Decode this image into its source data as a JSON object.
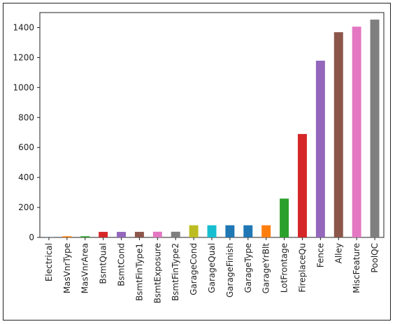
{
  "chart_data": {
    "type": "bar",
    "title": "",
    "xlabel": "",
    "ylabel": "",
    "ylim": [
      0,
      1500
    ],
    "yticks": [
      0,
      200,
      400,
      600,
      800,
      1000,
      1200,
      1400
    ],
    "grid": false,
    "legend": "none",
    "categories": [
      "Electrical",
      "MasVnrType",
      "MasVnrArea",
      "BsmtQual",
      "BsmtCond",
      "BsmtFinType1",
      "BsmtExposure",
      "BsmtFinType2",
      "GarageCond",
      "GarageQual",
      "GarageFinish",
      "GarageType",
      "GarageYrBlt",
      "LotFrontage",
      "FireplaceQu",
      "Fence",
      "Alley",
      "MiscFeature",
      "PoolQC"
    ],
    "values": [
      1,
      8,
      8,
      37,
      37,
      37,
      38,
      38,
      81,
      81,
      81,
      81,
      81,
      259,
      690,
      1179,
      1369,
      1406,
      1453
    ],
    "colors": [
      "#1f77b4",
      "#ff7f0e",
      "#2ca02c",
      "#d62728",
      "#9467bd",
      "#8c564b",
      "#e377c2",
      "#7f7f7f",
      "#bcbd22",
      "#17becf",
      "#1f77b4",
      "#1f77b4",
      "#ff7f0e",
      "#2ca02c",
      "#d62728",
      "#9467bd",
      "#8c564b",
      "#e377c2",
      "#7f7f7f"
    ]
  }
}
